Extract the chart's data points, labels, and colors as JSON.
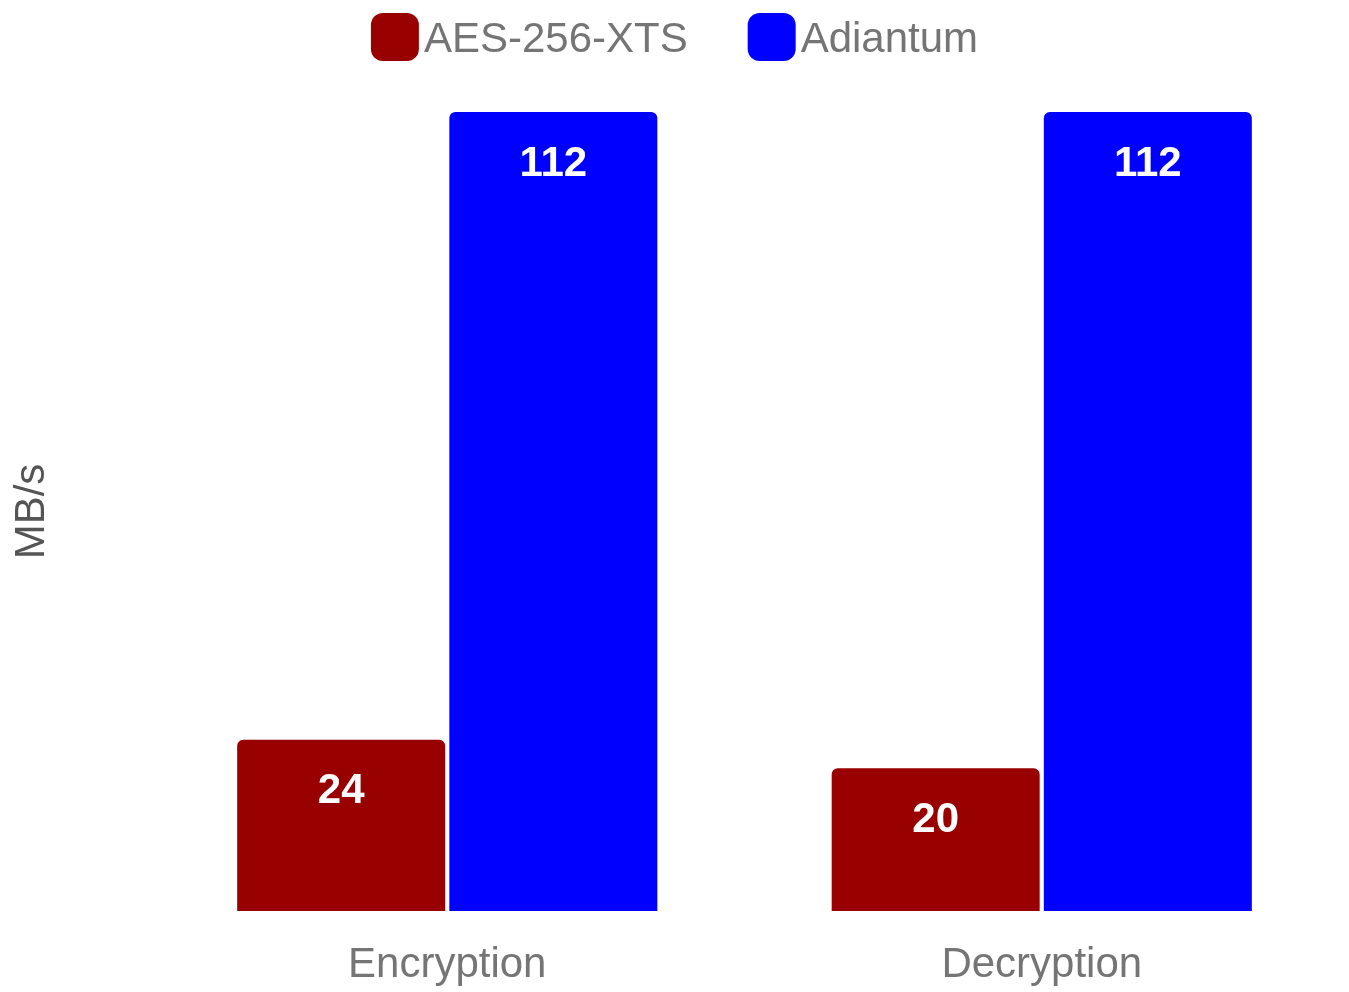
{
  "chart_data": {
    "type": "bar",
    "ylabel": "MB/s",
    "categories": [
      "Encryption",
      "Decryption"
    ],
    "series": [
      {
        "name": "AES-256-XTS",
        "color": "#990000",
        "values": [
          24,
          20
        ]
      },
      {
        "name": "Adiantum",
        "color": "#0000ff",
        "values": [
          112,
          112
        ]
      }
    ],
    "data_labels": true,
    "legend": "top",
    "grid": false
  }
}
